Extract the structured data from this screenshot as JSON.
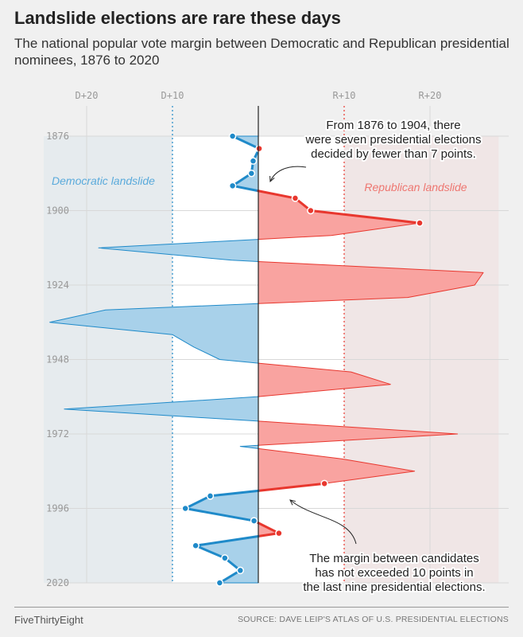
{
  "title": "Landslide elections are rare these days",
  "subtitle": "The national popular vote margin between Democratic and Republican presidential nominees, 1876 to 2020",
  "footer": {
    "brand": "FiveThirtyEight",
    "source": "SOURCE: DAVE LEIP'S ATLAS OF U.S. PRESIDENTIAL ELECTIONS"
  },
  "chart_data": {
    "type": "area",
    "x_label": "",
    "y_label": "",
    "x_ticks": [
      "D+20",
      "D+10",
      "R+10",
      "R+20"
    ],
    "x_tick_values": [
      -20,
      -10,
      10,
      20
    ],
    "y_ticks": [
      "1876",
      "1900",
      "1924",
      "1948",
      "1972",
      "1996",
      "2020"
    ],
    "y_tick_values": [
      1876,
      1900,
      1924,
      1948,
      1972,
      1996,
      2020
    ],
    "xlim": [
      -25,
      28
    ],
    "ylim": [
      1876,
      2020
    ],
    "grid": true,
    "orientation": "vertical-time",
    "zones": [
      {
        "label": "Democratic landslide",
        "range": [
          -25,
          -10
        ]
      },
      {
        "label": "Republican landslide",
        "range": [
          10,
          28
        ]
      }
    ],
    "series": [
      {
        "years": [
          1876,
          1880,
          1884,
          1888,
          1892,
          1896,
          1900,
          1904,
          1908,
          1912,
          1916,
          1920,
          1924,
          1928,
          1932,
          1936,
          1940,
          1944,
          1948,
          1952,
          1956,
          1960,
          1964,
          1968,
          1972,
          1976,
          1980,
          1984,
          1988,
          1992,
          1996,
          2000,
          2004,
          2008,
          2012,
          2016,
          2020
        ],
        "margin": [
          -3.0,
          0.1,
          -0.6,
          -0.8,
          -3.0,
          4.3,
          6.1,
          18.8,
          8.5,
          -18.6,
          -3.1,
          26.2,
          25.2,
          17.4,
          -17.8,
          -24.3,
          -10.0,
          -7.5,
          -4.5,
          10.8,
          15.4,
          -0.2,
          -22.6,
          0.7,
          23.2,
          -2.1,
          9.7,
          18.2,
          7.7,
          -5.6,
          -8.5,
          -0.5,
          2.4,
          -7.3,
          -3.9,
          -2.1,
          -4.5
        ]
      }
    ],
    "highlighted_dots_range": [
      [
        1876,
        1904
      ],
      [
        1988,
        2020
      ]
    ],
    "colors": {
      "dem": "#1f8ac9",
      "dem_fill": "#a8d1ea",
      "rep": "#e8372e",
      "rep_fill": "#f9a3a0",
      "dem_zone": "#e6ebee",
      "rep_zone": "#f0e6e6",
      "plot_bg": "#ffffff"
    },
    "annotations": [
      {
        "lines": [
          "From 1876 to 1904, there",
          "were seven presidential elections",
          "decided by fewer than 7 points."
        ]
      },
      {
        "lines": [
          "The margin between candidates",
          "has not exceeded 10 points in",
          "the last nine presidential elections."
        ]
      }
    ]
  }
}
